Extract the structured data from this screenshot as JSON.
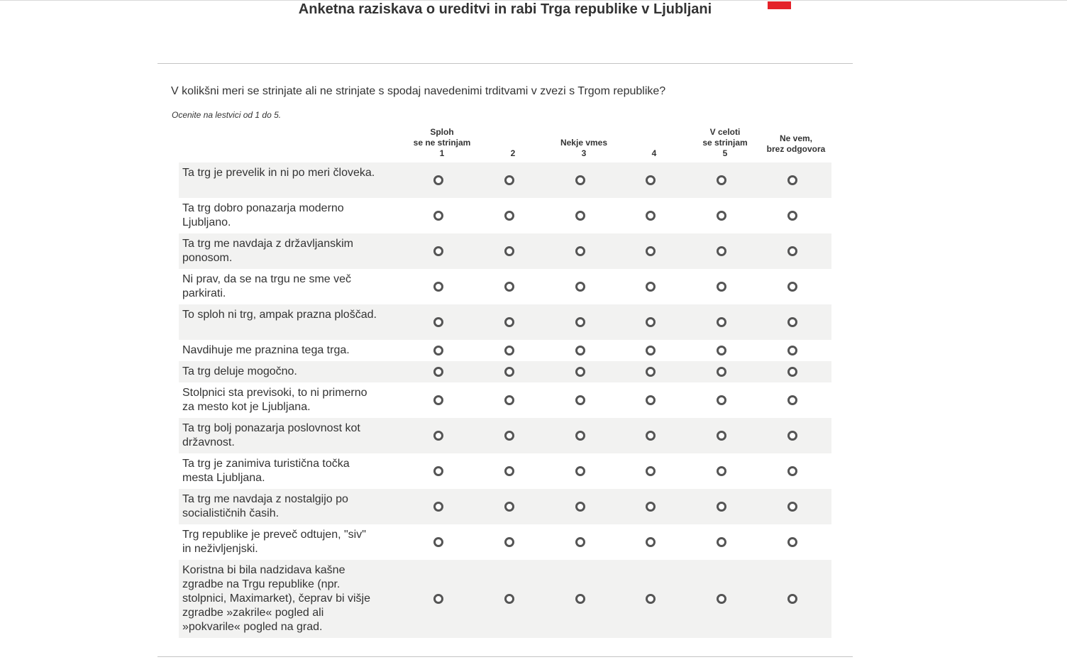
{
  "survey": {
    "title": "Anketna raziskava o ureditvi in rabi Trga republike v Ljubljani",
    "brand_color": "#e42229"
  },
  "question": {
    "text": "V kolikšni meri se strinjate ali ne strinjate s spodaj navedenimi trditvami v zvezi s Trgom republike?",
    "instruction": "Ocenite na lestvici od 1 do 5."
  },
  "scale_headers": [
    {
      "label": "Sploh\nse ne strinjam",
      "number": "1"
    },
    {
      "label": "",
      "number": "2"
    },
    {
      "label": "Nekje vmes",
      "number": "3"
    },
    {
      "label": "",
      "number": "4"
    },
    {
      "label": "V celoti\nse strinjam",
      "number": "5"
    },
    {
      "label": "Ne vem,\nbrez odgovora",
      "number": ""
    }
  ],
  "statements": [
    "Ta trg je prevelik in ni po meri človeka.",
    "Ta trg dobro ponazarja moderno Ljubljano.",
    "Ta trg me navdaja z državljanskim ponosom.",
    "Ni prav, da se na trgu ne sme več parkirati.",
    "To sploh ni trg, ampak prazna ploščad.",
    "Navdihuje me praznina tega trga.",
    "Ta trg deluje mogočno.",
    "Stolpnici sta previsoki, to ni primerno za mesto kot je Ljubljana.",
    "Ta trg bolj ponazarja poslovnost kot državnost.",
    "Ta trg je zanimiva turistična točka mesta Ljubljana.",
    "Ta trg me navdaja z nostalgijo po socialističnih časih.",
    "Trg republike je preveč odtujen, \"siv\" in neživljenjski.",
    "Koristna bi bila nadzidava kašne zgradbe na Trgu republike (npr. stolpnici, Maximarket), čeprav bi višje zgradbe »zakrile« pogled ali »pokvarile« pogled na grad."
  ]
}
